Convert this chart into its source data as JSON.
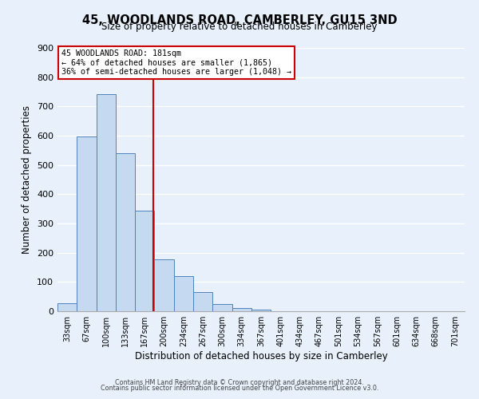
{
  "title": "45, WOODLANDS ROAD, CAMBERLEY, GU15 3ND",
  "subtitle": "Size of property relative to detached houses in Camberley",
  "xlabel": "Distribution of detached houses by size in Camberley",
  "ylabel": "Number of detached properties",
  "bar_labels": [
    "33sqm",
    "67sqm",
    "100sqm",
    "133sqm",
    "167sqm",
    "200sqm",
    "234sqm",
    "267sqm",
    "300sqm",
    "334sqm",
    "367sqm",
    "401sqm",
    "434sqm",
    "467sqm",
    "501sqm",
    "534sqm",
    "567sqm",
    "601sqm",
    "634sqm",
    "668sqm",
    "701sqm"
  ],
  "bar_values": [
    27,
    597,
    743,
    540,
    343,
    176,
    121,
    65,
    25,
    10,
    5,
    0,
    0,
    0,
    0,
    0,
    0,
    0,
    0,
    0,
    0
  ],
  "bar_color": "#c5d9f1",
  "bar_edgecolor": "#4f81bd",
  "background_color": "#e8f0fb",
  "grid_color": "#ffffff",
  "annotation_line1": "45 WOODLANDS ROAD: 181sqm",
  "annotation_line2": "← 64% of detached houses are smaller (1,865)",
  "annotation_line3": "36% of semi-detached houses are larger (1,048) →",
  "vline_x": 181,
  "vline_color": "#cc0000",
  "ylim": [
    0,
    900
  ],
  "yticks": [
    0,
    100,
    200,
    300,
    400,
    500,
    600,
    700,
    800,
    900
  ],
  "footer_line1": "Contains HM Land Registry data © Crown copyright and database right 2024.",
  "footer_line2": "Contains public sector information licensed under the Open Government Licence v3.0."
}
